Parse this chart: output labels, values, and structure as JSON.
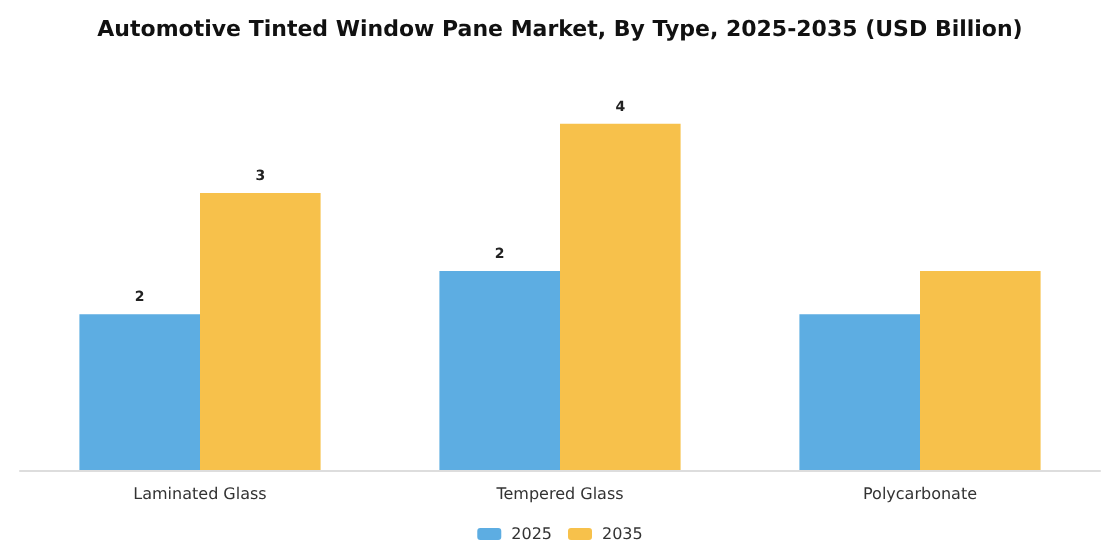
{
  "chart_data": {
    "type": "bar",
    "title": "Automotive Tinted Window Pane Market, By Type, 2025-2035 (USD Billion)",
    "categories": [
      "Laminated Glass",
      "Tempered Glass",
      "Polycarbonate"
    ],
    "series": [
      {
        "name": "2025",
        "color": "#5dade2",
        "values": [
          1.8,
          2.3,
          1.8
        ],
        "value_labels": [
          "2",
          "2",
          null
        ]
      },
      {
        "name": "2035",
        "color": "#f7c14b",
        "values": [
          3.2,
          4,
          2.3
        ],
        "value_labels": [
          "3",
          "4",
          null
        ]
      }
    ],
    "legend": "bottom"
  }
}
